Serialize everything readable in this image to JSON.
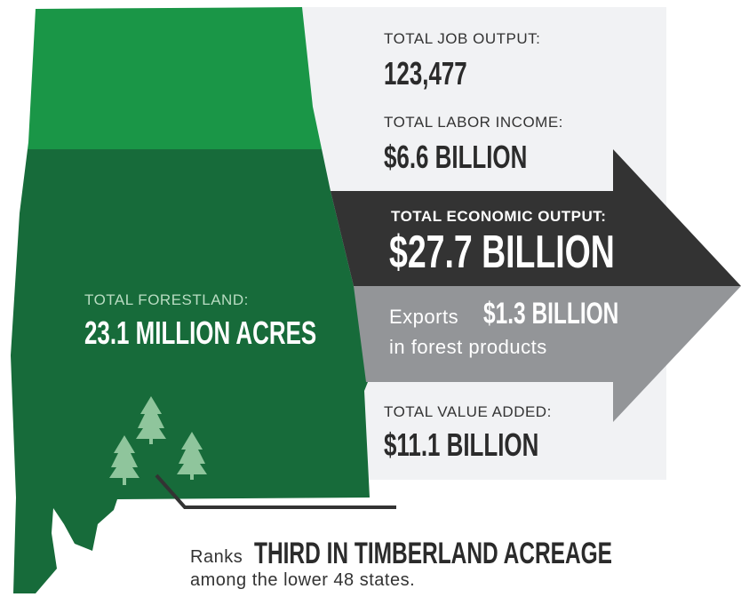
{
  "job_output": {
    "label": "TOTAL JOB OUTPUT:",
    "value": "123,477"
  },
  "labor_income": {
    "label": "TOTAL LABOR INCOME:",
    "value": "$6.6 BILLION"
  },
  "economic_output": {
    "label": "TOTAL ECONOMIC OUTPUT:",
    "value": "$27.7 BILLION"
  },
  "exports": {
    "prefix": "Exports",
    "value": "$1.3 BILLION",
    "suffix": "in forest products"
  },
  "value_added": {
    "label": "TOTAL VALUE ADDED:",
    "value": "$11.1 BILLION"
  },
  "forestland": {
    "label": "TOTAL FORESTLAND:",
    "value": "23.1 MILLION ACRES"
  },
  "rank": {
    "prefix": "Ranks",
    "value": "THIRD IN TIMBERLAND ACREAGE",
    "suffix": "among the lower 48 states."
  }
}
